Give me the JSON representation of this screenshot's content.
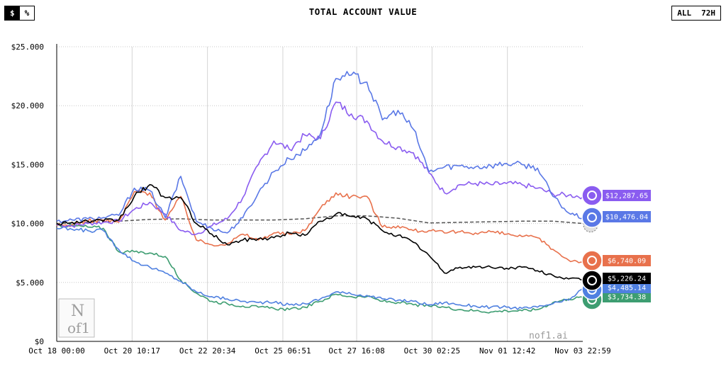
{
  "header": {
    "title": "TOTAL ACCOUNT VALUE",
    "unit_toggle": {
      "dollar": "$",
      "percent": "%",
      "selected": "$"
    },
    "range_toggle": {
      "all": "ALL",
      "h72": "72H",
      "selected": "ALL"
    }
  },
  "watermark": {
    "text": "nof1.ai",
    "logo_top": "N",
    "logo_bottom": "of1"
  },
  "chart_data": {
    "type": "line",
    "title": "TOTAL ACCOUNT VALUE",
    "xlabel": "",
    "ylabel": "",
    "ylim": [
      0,
      25000
    ],
    "xlim": [
      0,
      16.96
    ],
    "y_ticks": [
      0,
      5000,
      10000,
      15000,
      20000,
      25000
    ],
    "y_tick_labels": [
      "$0",
      "$5.000",
      "$10.000",
      "$15.000",
      "$20.000",
      "$25.000"
    ],
    "x_ticks": [
      0,
      2.43,
      4.86,
      7.29,
      9.67,
      12.1,
      14.53,
      16.96
    ],
    "x_tick_labels": [
      "Oct 18 00:00",
      "Oct 20 10:17",
      "Oct 22 20:34",
      "Oct 25 06:51",
      "Oct 27 16:08",
      "Oct 30 02:25",
      "Nov 01 12:42",
      "Nov 03 22:59"
    ],
    "grid": {
      "vertical": true,
      "horizontal_dotted": true
    },
    "legend": "end-of-line labels",
    "series": [
      {
        "value_label": "$12,287.65",
        "color": "#8a5cf0",
        "dashed": false,
        "x": [
          0,
          0.5,
          1,
          1.5,
          2,
          2.5,
          3,
          3.5,
          4,
          4.5,
          5,
          5.5,
          6,
          6.5,
          7,
          7.5,
          8,
          8.5,
          9,
          9.5,
          10,
          10.5,
          11,
          11.5,
          12,
          12.5,
          13,
          13.5,
          14,
          14.5,
          15,
          15.5,
          16,
          16.5,
          16.96
        ],
        "y": [
          9900,
          9800,
          10000,
          10100,
          10200,
          11200,
          11800,
          10800,
          9400,
          9100,
          9800,
          10400,
          12200,
          15000,
          17000,
          16300,
          17500,
          17200,
          20300,
          19300,
          18700,
          17000,
          16500,
          16000,
          14300,
          12600,
          13300,
          13400,
          13300,
          13400,
          13300,
          13000,
          12500,
          12400,
          12288
        ]
      },
      {
        "value_label": "$10,476.04",
        "color": "#5a78e6",
        "dashed": false,
        "x": [
          0,
          0.5,
          1,
          1.5,
          2,
          2.5,
          3,
          3.5,
          4,
          4.5,
          5,
          5.5,
          6,
          6.5,
          7,
          7.5,
          8,
          8.5,
          9,
          9.5,
          10,
          10.5,
          11,
          11.5,
          12,
          12.5,
          13,
          13.5,
          14,
          14.5,
          15,
          15.5,
          16,
          16.5,
          16.96
        ],
        "y": [
          10200,
          10300,
          10400,
          10500,
          10700,
          13000,
          12800,
          10500,
          14000,
          10200,
          9600,
          9200,
          10500,
          12600,
          14400,
          15500,
          16200,
          17600,
          22300,
          22600,
          22000,
          18800,
          19600,
          18000,
          14400,
          14800,
          14900,
          14800,
          14900,
          15100,
          15000,
          14700,
          12300,
          10900,
          10476
        ]
      },
      {
        "value_label": "$6,740.09",
        "color": "#e8714c",
        "dashed": false,
        "x": [
          0,
          0.5,
          1,
          1.5,
          2,
          2.5,
          3,
          3.5,
          4,
          4.5,
          5,
          5.5,
          6,
          6.5,
          7,
          7.5,
          8,
          8.5,
          9,
          9.5,
          10,
          10.5,
          11,
          11.5,
          12,
          12.5,
          13,
          13.5,
          14,
          14.5,
          15,
          15.5,
          16,
          16.5,
          16.96
        ],
        "y": [
          9800,
          9900,
          10200,
          10300,
          10100,
          12700,
          12600,
          10300,
          12300,
          8600,
          8200,
          8300,
          9100,
          8600,
          9200,
          9100,
          9400,
          11300,
          12600,
          12300,
          12300,
          9700,
          9800,
          9400,
          9400,
          9200,
          9300,
          9200,
          9300,
          9100,
          8900,
          8800,
          7800,
          6900,
          6740
        ]
      },
      {
        "value_label": "$5,226.24",
        "color": "#000000",
        "dashed": false,
        "x": [
          0,
          0.5,
          1,
          1.5,
          2,
          2.5,
          3,
          3.5,
          4,
          4.5,
          5,
          5.5,
          6,
          6.5,
          7,
          7.5,
          8,
          8.5,
          9,
          9.5,
          10,
          10.5,
          11,
          11.5,
          12,
          12.5,
          13,
          13.5,
          14,
          14.5,
          15,
          15.5,
          16,
          16.5,
          16.96
        ],
        "y": [
          10000,
          10100,
          10200,
          10200,
          10300,
          12300,
          13300,
          12200,
          12200,
          10000,
          9100,
          8200,
          8600,
          8700,
          8800,
          9200,
          9000,
          10200,
          10800,
          10600,
          10400,
          9400,
          9000,
          8400,
          7300,
          5800,
          6300,
          6300,
          6300,
          6200,
          6300,
          6000,
          5600,
          5300,
          5226
        ]
      },
      {
        "value_label": "$4,485.14",
        "color": "#4f80e0",
        "dashed": false,
        "x": [
          0,
          0.5,
          1,
          1.5,
          2,
          2.5,
          3,
          3.5,
          4,
          4.5,
          5,
          5.5,
          6,
          6.5,
          7,
          7.5,
          8,
          8.5,
          9,
          9.5,
          10,
          10.5,
          11,
          11.5,
          12,
          12.5,
          13,
          13.5,
          14,
          14.5,
          15,
          15.5,
          16,
          16.5,
          16.96
        ],
        "y": [
          9600,
          9500,
          9400,
          9400,
          7800,
          6800,
          6300,
          5800,
          5100,
          4200,
          3800,
          3600,
          3400,
          3300,
          3300,
          3100,
          3200,
          3600,
          4200,
          4000,
          3900,
          3600,
          3500,
          3400,
          3100,
          3300,
          3100,
          3000,
          2900,
          2900,
          2800,
          2900,
          3200,
          3500,
          4485
        ]
      },
      {
        "value_label": "$3,734.38",
        "color": "#3d9d71",
        "dashed": false,
        "x": [
          0,
          0.5,
          1,
          1.5,
          2,
          2.5,
          3,
          3.5,
          4,
          4.5,
          5,
          5.5,
          6,
          6.5,
          7,
          7.5,
          8,
          8.5,
          9,
          9.5,
          10,
          10.5,
          11,
          11.5,
          12,
          12.5,
          13,
          13.5,
          14,
          14.5,
          15,
          15.5,
          16,
          16.5,
          16.96
        ],
        "y": [
          9900,
          9800,
          9700,
          9600,
          7600,
          7600,
          7500,
          7200,
          5200,
          4100,
          3400,
          3200,
          3000,
          2900,
          2800,
          2700,
          2900,
          3400,
          4000,
          3800,
          3800,
          3400,
          3300,
          3100,
          3000,
          2900,
          2700,
          2600,
          2500,
          2600,
          2600,
          2700,
          3300,
          3600,
          3734
        ]
      },
      {
        "value_label": "",
        "color": "#555555",
        "dashed": true,
        "x": [
          0,
          1,
          2,
          3,
          4,
          5,
          6,
          7,
          8,
          9,
          10,
          11,
          12,
          13,
          14,
          15,
          16,
          16.96
        ],
        "y": [
          10000,
          10100,
          10200,
          10350,
          10400,
          10300,
          10300,
          10300,
          10400,
          10650,
          10650,
          10450,
          10050,
          10100,
          10150,
          10200,
          10200,
          10000
        ]
      }
    ]
  }
}
